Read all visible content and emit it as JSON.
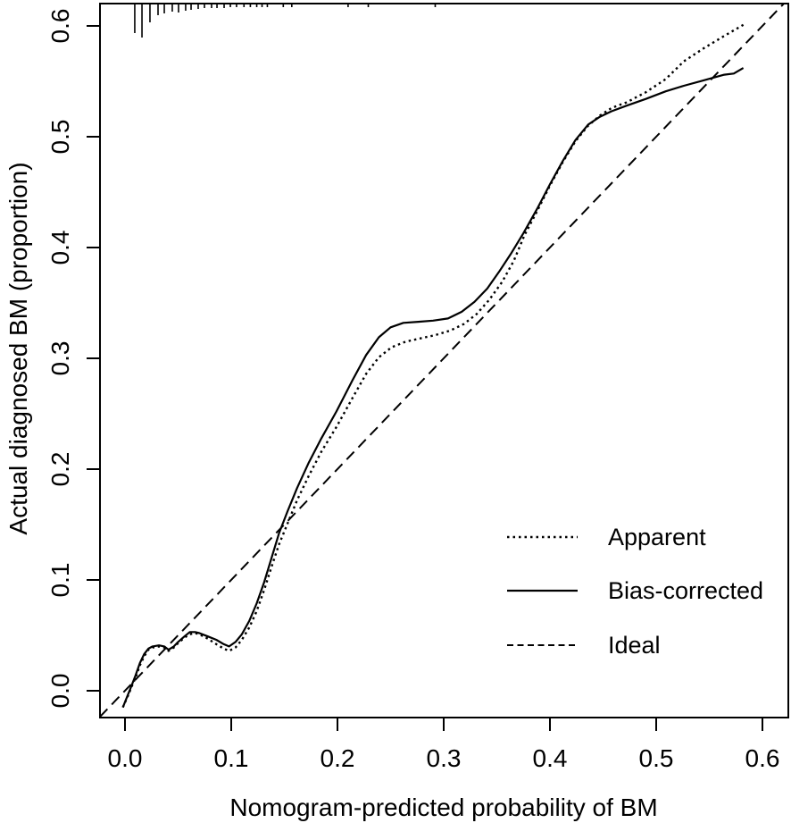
{
  "colors": {
    "foreground": "#000000",
    "background": "#ffffff"
  },
  "chart_data": {
    "type": "line",
    "title": "",
    "xlabel": "Nomogram-predicted probability of BM",
    "ylabel": "Actual diagnosed BM (proportion)",
    "xlim": [
      -0.0235,
      0.6244
    ],
    "ylim": [
      -0.0242,
      0.6202
    ],
    "grid": false,
    "legend_position": "inside-lower-right",
    "xticks": [
      0.0,
      0.1,
      0.2,
      0.3,
      0.4,
      0.5,
      0.6
    ],
    "xtick_labels": [
      "0.0",
      "0.1",
      "0.2",
      "0.3",
      "0.4",
      "0.5",
      "0.6"
    ],
    "yticks": [
      0.0,
      0.1,
      0.2,
      0.3,
      0.4,
      0.5,
      0.6
    ],
    "ytick_labels": [
      "0.0",
      "0.1",
      "0.2",
      "0.3",
      "0.4",
      "0.5",
      "0.6"
    ],
    "series": [
      {
        "name": "Ideal",
        "style": "dashed",
        "points": [
          [
            -0.0235,
            -0.0235
          ],
          [
            0.6202,
            0.6202
          ]
        ]
      },
      {
        "name": "Apparent",
        "style": "dotted",
        "points": [
          [
            -0.002,
            -0.015
          ],
          [
            0.003,
            -0.004
          ],
          [
            0.006,
            0.003
          ],
          [
            0.01,
            0.012
          ],
          [
            0.014,
            0.023
          ],
          [
            0.018,
            0.031
          ],
          [
            0.022,
            0.037
          ],
          [
            0.026,
            0.039
          ],
          [
            0.032,
            0.04
          ],
          [
            0.037,
            0.039
          ],
          [
            0.041,
            0.036
          ],
          [
            0.046,
            0.039
          ],
          [
            0.05,
            0.043
          ],
          [
            0.056,
            0.048
          ],
          [
            0.061,
            0.051
          ],
          [
            0.066,
            0.052
          ],
          [
            0.07,
            0.051
          ],
          [
            0.078,
            0.047
          ],
          [
            0.086,
            0.042
          ],
          [
            0.093,
            0.038
          ],
          [
            0.098,
            0.036
          ],
          [
            0.104,
            0.039
          ],
          [
            0.11,
            0.046
          ],
          [
            0.117,
            0.057
          ],
          [
            0.124,
            0.072
          ],
          [
            0.131,
            0.091
          ],
          [
            0.138,
            0.112
          ],
          [
            0.145,
            0.132
          ],
          [
            0.153,
            0.151
          ],
          [
            0.162,
            0.172
          ],
          [
            0.173,
            0.194
          ],
          [
            0.185,
            0.216
          ],
          [
            0.199,
            0.238
          ],
          [
            0.214,
            0.264
          ],
          [
            0.227,
            0.286
          ],
          [
            0.239,
            0.301
          ],
          [
            0.251,
            0.31
          ],
          [
            0.264,
            0.315
          ],
          [
            0.278,
            0.318
          ],
          [
            0.292,
            0.321
          ],
          [
            0.306,
            0.325
          ],
          [
            0.319,
            0.331
          ],
          [
            0.331,
            0.34
          ],
          [
            0.343,
            0.353
          ],
          [
            0.355,
            0.369
          ],
          [
            0.366,
            0.388
          ],
          [
            0.376,
            0.411
          ],
          [
            0.388,
            0.433
          ],
          [
            0.4,
            0.456
          ],
          [
            0.412,
            0.477
          ],
          [
            0.424,
            0.496
          ],
          [
            0.436,
            0.51
          ],
          [
            0.447,
            0.519
          ],
          [
            0.458,
            0.526
          ],
          [
            0.472,
            0.531
          ],
          [
            0.49,
            0.54
          ],
          [
            0.509,
            0.552
          ],
          [
            0.526,
            0.568
          ],
          [
            0.545,
            0.58
          ],
          [
            0.564,
            0.591
          ],
          [
            0.582,
            0.601
          ]
        ]
      },
      {
        "name": "Bias-corrected",
        "style": "solid",
        "points": [
          [
            -0.002,
            -0.015
          ],
          [
            0.003,
            -0.003
          ],
          [
            0.006,
            0.004
          ],
          [
            0.01,
            0.014
          ],
          [
            0.014,
            0.025
          ],
          [
            0.018,
            0.033
          ],
          [
            0.022,
            0.038
          ],
          [
            0.026,
            0.04
          ],
          [
            0.032,
            0.041
          ],
          [
            0.037,
            0.04
          ],
          [
            0.041,
            0.037
          ],
          [
            0.046,
            0.04
          ],
          [
            0.05,
            0.044
          ],
          [
            0.056,
            0.049
          ],
          [
            0.061,
            0.053
          ],
          [
            0.066,
            0.053
          ],
          [
            0.07,
            0.052
          ],
          [
            0.078,
            0.049
          ],
          [
            0.086,
            0.046
          ],
          [
            0.093,
            0.042
          ],
          [
            0.098,
            0.04
          ],
          [
            0.104,
            0.044
          ],
          [
            0.11,
            0.051
          ],
          [
            0.117,
            0.063
          ],
          [
            0.124,
            0.079
          ],
          [
            0.131,
            0.098
          ],
          [
            0.138,
            0.12
          ],
          [
            0.145,
            0.142
          ],
          [
            0.153,
            0.162
          ],
          [
            0.162,
            0.183
          ],
          [
            0.173,
            0.206
          ],
          [
            0.185,
            0.228
          ],
          [
            0.199,
            0.252
          ],
          [
            0.214,
            0.28
          ],
          [
            0.227,
            0.303
          ],
          [
            0.239,
            0.319
          ],
          [
            0.25,
            0.328
          ],
          [
            0.262,
            0.332
          ],
          [
            0.276,
            0.333
          ],
          [
            0.29,
            0.334
          ],
          [
            0.304,
            0.336
          ],
          [
            0.317,
            0.342
          ],
          [
            0.329,
            0.351
          ],
          [
            0.341,
            0.363
          ],
          [
            0.352,
            0.378
          ],
          [
            0.363,
            0.394
          ],
          [
            0.375,
            0.413
          ],
          [
            0.388,
            0.435
          ],
          [
            0.4,
            0.457
          ],
          [
            0.412,
            0.478
          ],
          [
            0.424,
            0.497
          ],
          [
            0.436,
            0.511
          ],
          [
            0.447,
            0.518
          ],
          [
            0.458,
            0.523
          ],
          [
            0.472,
            0.528
          ],
          [
            0.49,
            0.534
          ],
          [
            0.509,
            0.541
          ],
          [
            0.526,
            0.546
          ],
          [
            0.545,
            0.551
          ],
          [
            0.564,
            0.556
          ],
          [
            0.573,
            0.557
          ],
          [
            0.582,
            0.562
          ]
        ]
      }
    ],
    "rug": {
      "x": [
        0.0092,
        0.016,
        0.0235,
        0.0311,
        0.037,
        0.0445,
        0.0504,
        0.0571,
        0.0622,
        0.0689,
        0.0748,
        0.0815,
        0.0866,
        0.0933,
        0.0992,
        0.105,
        0.112,
        0.118,
        0.124,
        0.129,
        0.134,
        0.149,
        0.157,
        0.21,
        0.229,
        0.292
      ],
      "lengths": [
        33,
        38,
        21,
        13,
        11,
        9,
        10,
        8,
        7,
        6,
        5,
        5,
        5,
        5,
        4,
        4,
        4,
        4,
        4,
        4,
        4,
        4,
        4,
        4,
        4,
        4
      ]
    },
    "legend": {
      "entries": [
        {
          "label": "Apparent",
          "style": "dotted"
        },
        {
          "label": "Bias-corrected",
          "style": "solid"
        },
        {
          "label": "Ideal",
          "style": "dashed"
        }
      ]
    }
  }
}
